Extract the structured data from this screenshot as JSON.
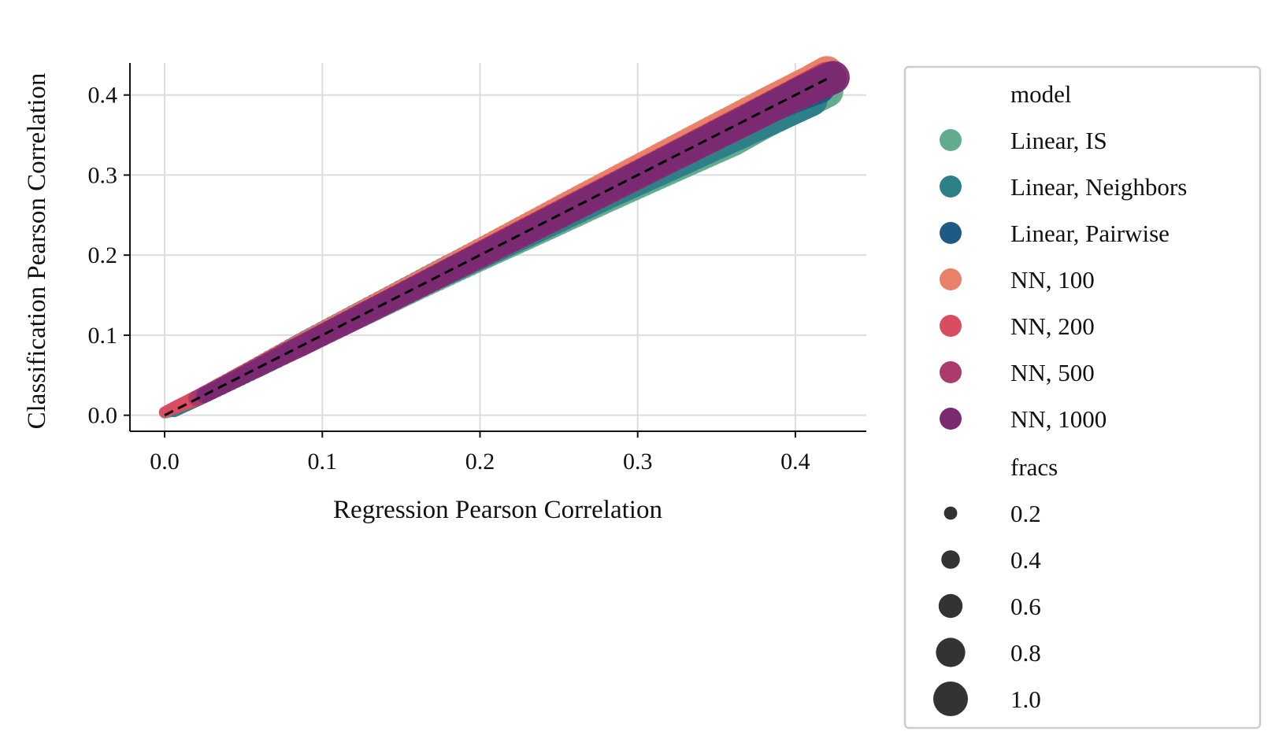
{
  "chart_data": {
    "type": "scatter",
    "xlabel": "Regression Pearson Correlation",
    "ylabel": "Classification Pearson Correlation",
    "xlim": [
      -0.022,
      0.445
    ],
    "ylim": [
      -0.02,
      0.44
    ],
    "xticks": [
      "0.0",
      "0.1",
      "0.2",
      "0.3",
      "0.4"
    ],
    "yticks": [
      "0.0",
      "0.1",
      "0.2",
      "0.3",
      "0.4"
    ],
    "grid": true,
    "legend_placement": "outside-right",
    "reference_line": {
      "style": "dashed",
      "color": "#000000",
      "x": [
        0.0,
        0.42
      ],
      "y": [
        0.0,
        0.42
      ]
    },
    "legend": {
      "hue_title": "model",
      "size_title": "fracs",
      "sizes": [
        {
          "label": "0.2",
          "value": 0.2
        },
        {
          "label": "0.4",
          "value": 0.4
        },
        {
          "label": "0.6",
          "value": 0.6
        },
        {
          "label": "0.8",
          "value": 0.8
        },
        {
          "label": "1.0",
          "value": 1.0
        }
      ]
    },
    "series": [
      {
        "name": "Linear, IS",
        "color": "#63ab8e",
        "x": [
          0.0,
          0.006,
          0.024,
          0.05,
          0.061,
          0.08,
          0.1,
          0.13,
          0.16,
          0.2,
          0.24,
          0.28,
          0.32,
          0.36,
          0.38,
          0.4,
          0.42
        ],
        "y": [
          0.003,
          0.007,
          0.024,
          0.05,
          0.061,
          0.08,
          0.1,
          0.129,
          0.158,
          0.196,
          0.233,
          0.27,
          0.306,
          0.342,
          0.365,
          0.385,
          0.405
        ],
        "fracs": [
          0.02,
          0.05,
          0.1,
          0.15,
          0.2,
          0.25,
          0.3,
          0.35,
          0.4,
          0.5,
          0.6,
          0.65,
          0.7,
          0.8,
          0.9,
          0.95,
          1.0
        ]
      },
      {
        "name": "Linear, Neighbors",
        "color": "#2e8088",
        "x": [
          0.006,
          0.024,
          0.06,
          0.09,
          0.12,
          0.16,
          0.2,
          0.24,
          0.28,
          0.32,
          0.36,
          0.39,
          0.41
        ],
        "y": [
          0.006,
          0.024,
          0.06,
          0.092,
          0.121,
          0.16,
          0.198,
          0.236,
          0.274,
          0.31,
          0.347,
          0.375,
          0.394
        ],
        "fracs": [
          0.05,
          0.1,
          0.2,
          0.3,
          0.35,
          0.4,
          0.5,
          0.6,
          0.65,
          0.7,
          0.8,
          0.9,
          1.0
        ]
      },
      {
        "name": "Linear, Pairwise",
        "color": "#1e5a84",
        "x": [
          0.02,
          0.05,
          0.09,
          0.13,
          0.17,
          0.21,
          0.25,
          0.29,
          0.33,
          0.37,
          0.4,
          0.415
        ],
        "y": [
          0.021,
          0.052,
          0.093,
          0.134,
          0.175,
          0.215,
          0.255,
          0.295,
          0.335,
          0.373,
          0.398,
          0.41
        ],
        "fracs": [
          0.1,
          0.15,
          0.3,
          0.35,
          0.4,
          0.5,
          0.6,
          0.65,
          0.7,
          0.8,
          0.9,
          1.0
        ]
      },
      {
        "name": "NN, 100",
        "color": "#e88168",
        "x": [
          0.02,
          0.06,
          0.1,
          0.14,
          0.18,
          0.22,
          0.26,
          0.3,
          0.34,
          0.38,
          0.41,
          0.42
        ],
        "y": [
          0.021,
          0.062,
          0.103,
          0.144,
          0.185,
          0.226,
          0.267,
          0.308,
          0.349,
          0.389,
          0.418,
          0.428
        ],
        "fracs": [
          0.1,
          0.2,
          0.3,
          0.35,
          0.4,
          0.5,
          0.6,
          0.65,
          0.7,
          0.8,
          0.9,
          1.0
        ]
      },
      {
        "name": "NN, 200",
        "color": "#d94d62",
        "x": [
          0.0,
          0.022,
          0.074,
          0.12,
          0.16,
          0.2,
          0.24,
          0.28,
          0.32,
          0.36,
          0.4,
          0.42
        ],
        "y": [
          0.004,
          0.023,
          0.075,
          0.121,
          0.161,
          0.201,
          0.241,
          0.281,
          0.321,
          0.361,
          0.401,
          0.421
        ],
        "fracs": [
          0.02,
          0.1,
          0.25,
          0.35,
          0.4,
          0.5,
          0.6,
          0.65,
          0.7,
          0.8,
          0.9,
          1.0
        ]
      },
      {
        "name": "NN, 500",
        "color": "#ad3a6f",
        "x": [
          0.02,
          0.037,
          0.074,
          0.087,
          0.1,
          0.12,
          0.14,
          0.17,
          0.2,
          0.24,
          0.28,
          0.32,
          0.36,
          0.4,
          0.42
        ],
        "y": [
          0.021,
          0.038,
          0.075,
          0.087,
          0.1,
          0.12,
          0.14,
          0.17,
          0.2,
          0.24,
          0.28,
          0.32,
          0.36,
          0.4,
          0.42
        ],
        "fracs": [
          0.1,
          0.12,
          0.25,
          0.28,
          0.3,
          0.35,
          0.38,
          0.4,
          0.5,
          0.6,
          0.65,
          0.7,
          0.8,
          0.9,
          1.0
        ]
      },
      {
        "name": "NN, 1000",
        "color": "#7b2a72",
        "x": [
          0.025,
          0.05,
          0.1,
          0.15,
          0.2,
          0.25,
          0.3,
          0.35,
          0.4,
          0.424
        ],
        "y": [
          0.025,
          0.05,
          0.1,
          0.15,
          0.2,
          0.25,
          0.3,
          0.35,
          0.4,
          0.422
        ],
        "fracs": [
          0.1,
          0.15,
          0.3,
          0.4,
          0.5,
          0.6,
          0.65,
          0.75,
          0.9,
          1.0
        ]
      }
    ]
  }
}
